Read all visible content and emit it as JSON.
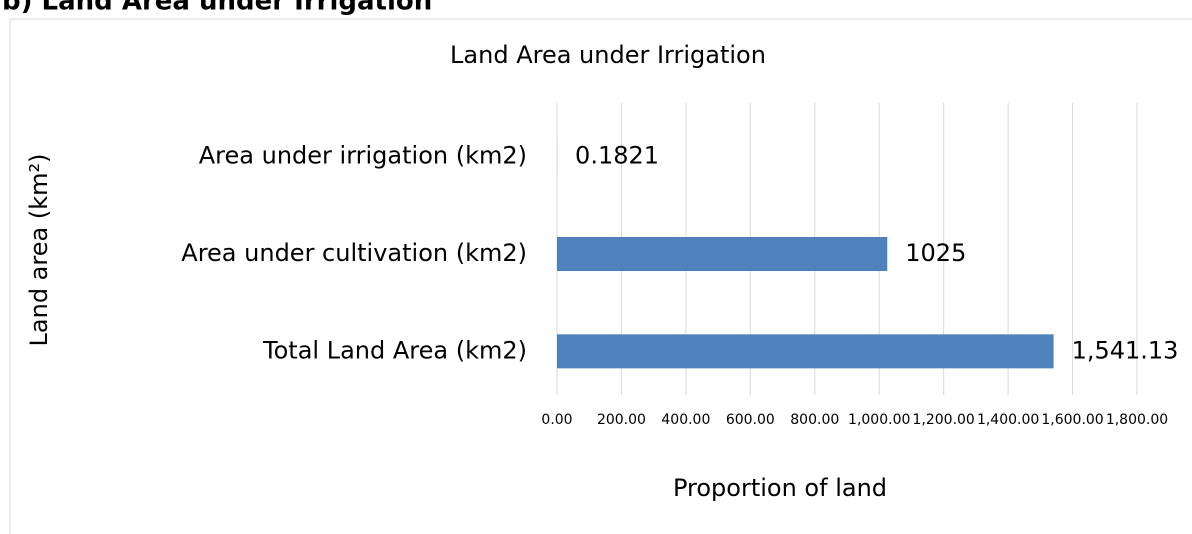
{
  "heading": "b) Land Area under Irrigation",
  "chart_data": {
    "type": "hbar",
    "title": "Land Area under Irrigation",
    "x_label": "Proportion of land",
    "y_label": "Land area (km²)",
    "categories": [
      "Area under irrigation (km2)",
      "Area under cultivation (km2)",
      "Total Land Area (km2)"
    ],
    "values": [
      0.1821,
      1025,
      1541.13
    ],
    "value_labels": [
      "0.1821",
      "1025",
      "1,541.13"
    ],
    "color": "#4f81bd",
    "xlim": [
      0,
      1800
    ],
    "xticks": [
      {
        "value": 0,
        "label": "0.00"
      },
      {
        "value": 200,
        "label": "200.00"
      },
      {
        "value": 400,
        "label": "400.00"
      },
      {
        "value": 600,
        "label": "600.00"
      },
      {
        "value": 800,
        "label": "800.00"
      },
      {
        "value": 1000,
        "label": "1,000.00"
      },
      {
        "value": 1200,
        "label": "1,200.00"
      },
      {
        "value": 1400,
        "label": "1,400.00"
      },
      {
        "value": 1600,
        "label": "1,600.00"
      },
      {
        "value": 1800,
        "label": "1,800.00"
      }
    ],
    "grid": true
  }
}
